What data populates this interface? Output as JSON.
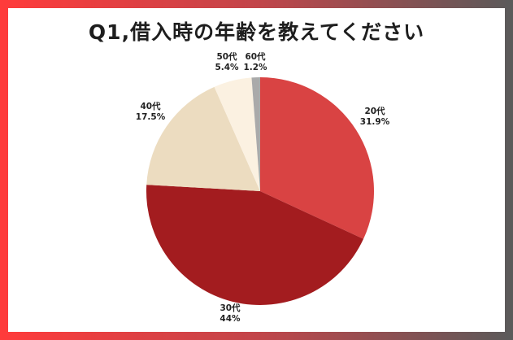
{
  "title": "Q1,借入時の年齢を教えてください",
  "chart_data": {
    "type": "pie",
    "title": "Q1,借入時の年齢を教えてください",
    "slices": [
      {
        "name": "20代",
        "value": 31.9,
        "label": "31.9%",
        "color": "#d94343"
      },
      {
        "name": "30代",
        "value": 44,
        "label": "44%",
        "color": "#a31c1f"
      },
      {
        "name": "40代",
        "value": 17.5,
        "label": "17.5%",
        "color": "#ecdcc0"
      },
      {
        "name": "50代",
        "value": 5.4,
        "label": "5.4%",
        "color": "#fbf1e1"
      },
      {
        "name": "60代",
        "value": 1.2,
        "label": "1.2%",
        "color": "#aaaaaa"
      }
    ],
    "legend": "none"
  }
}
